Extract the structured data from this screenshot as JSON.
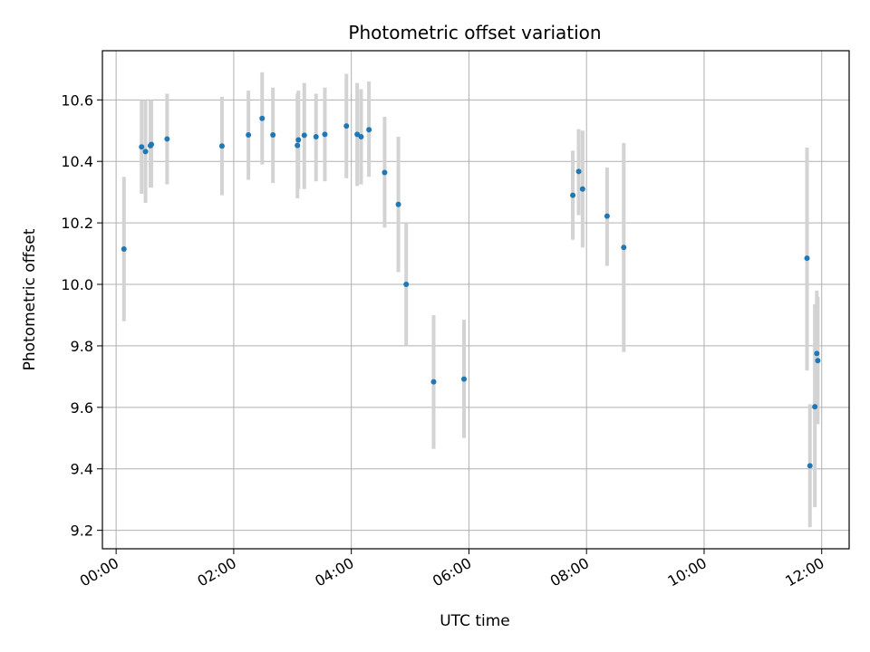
{
  "chart_data": {
    "type": "scatter",
    "title": "Photometric offset variation",
    "xlabel": "UTC time",
    "ylabel": "Photometric offset",
    "x_unit": "hours",
    "xlim": [
      "23:46",
      "12:28"
    ],
    "ylim": [
      9.14,
      10.76
    ],
    "x_ticks": [
      {
        "label": "00:00",
        "value": "00:00"
      },
      {
        "label": "02:00",
        "value": "02:00"
      },
      {
        "label": "04:00",
        "value": "04:00"
      },
      {
        "label": "06:00",
        "value": "06:00"
      },
      {
        "label": "08:00",
        "value": "08:00"
      },
      {
        "label": "10:00",
        "value": "10:00"
      },
      {
        "label": "12:00",
        "value": "12:00"
      }
    ],
    "y_ticks": [
      {
        "label": "9.2",
        "value": 9.2
      },
      {
        "label": "9.4",
        "value": 9.4
      },
      {
        "label": "9.6",
        "value": 9.6
      },
      {
        "label": "9.8",
        "value": 9.8
      },
      {
        "label": "10.0",
        "value": 10.0
      },
      {
        "label": "10.2",
        "value": 10.2
      },
      {
        "label": "10.4",
        "value": 10.4
      },
      {
        "label": "10.6",
        "value": 10.6
      }
    ],
    "grid": true,
    "legend": "none",
    "colors": {
      "point": "#1f77b4",
      "errorbar": "#d3d3d3",
      "grid": "#b0b0b0"
    },
    "points": [
      {
        "time": "00:08",
        "y": 10.115,
        "ylow": 9.88,
        "yhigh": 10.35
      },
      {
        "time": "00:26",
        "y": 10.447,
        "ylow": 10.295,
        "yhigh": 10.6
      },
      {
        "time": "00:30",
        "y": 10.432,
        "ylow": 10.265,
        "yhigh": 10.6
      },
      {
        "time": "00:35",
        "y": 10.451,
        "ylow": 10.315,
        "yhigh": 10.6
      },
      {
        "time": "00:36",
        "y": 10.455,
        "ylow": 10.315,
        "yhigh": 10.6
      },
      {
        "time": "00:52",
        "y": 10.473,
        "ylow": 10.325,
        "yhigh": 10.62
      },
      {
        "time": "01:48",
        "y": 10.45,
        "ylow": 10.29,
        "yhigh": 10.61
      },
      {
        "time": "02:15",
        "y": 10.486,
        "ylow": 10.34,
        "yhigh": 10.63
      },
      {
        "time": "02:29",
        "y": 10.54,
        "ylow": 10.39,
        "yhigh": 10.69
      },
      {
        "time": "02:40",
        "y": 10.486,
        "ylow": 10.33,
        "yhigh": 10.64
      },
      {
        "time": "03:05",
        "y": 10.452,
        "ylow": 10.28,
        "yhigh": 10.62
      },
      {
        "time": "03:06",
        "y": 10.47,
        "ylow": 10.31,
        "yhigh": 10.63
      },
      {
        "time": "03:12",
        "y": 10.485,
        "ylow": 10.31,
        "yhigh": 10.655
      },
      {
        "time": "03:24",
        "y": 10.48,
        "ylow": 10.335,
        "yhigh": 10.62
      },
      {
        "time": "03:33",
        "y": 10.488,
        "ylow": 10.335,
        "yhigh": 10.64
      },
      {
        "time": "03:55",
        "y": 10.515,
        "ylow": 10.345,
        "yhigh": 10.685
      },
      {
        "time": "04:06",
        "y": 10.488,
        "ylow": 10.32,
        "yhigh": 10.655
      },
      {
        "time": "04:10",
        "y": 10.48,
        "ylow": 10.325,
        "yhigh": 10.635
      },
      {
        "time": "04:18",
        "y": 10.503,
        "ylow": 10.35,
        "yhigh": 10.66
      },
      {
        "time": "04:34",
        "y": 10.364,
        "ylow": 10.185,
        "yhigh": 10.545
      },
      {
        "time": "04:48",
        "y": 10.26,
        "ylow": 10.04,
        "yhigh": 10.48
      },
      {
        "time": "04:56",
        "y": 10.0,
        "ylow": 9.8,
        "yhigh": 10.2
      },
      {
        "time": "05:24",
        "y": 9.683,
        "ylow": 9.465,
        "yhigh": 9.9
      },
      {
        "time": "05:55",
        "y": 9.692,
        "ylow": 9.5,
        "yhigh": 9.885
      },
      {
        "time": "07:46",
        "y": 10.29,
        "ylow": 10.145,
        "yhigh": 10.435
      },
      {
        "time": "07:52",
        "y": 10.367,
        "ylow": 10.225,
        "yhigh": 10.505
      },
      {
        "time": "07:56",
        "y": 10.31,
        "ylow": 10.12,
        "yhigh": 10.5
      },
      {
        "time": "08:21",
        "y": 10.222,
        "ylow": 10.06,
        "yhigh": 10.38
      },
      {
        "time": "08:38",
        "y": 10.12,
        "ylow": 9.78,
        "yhigh": 10.46
      },
      {
        "time": "11:45",
        "y": 10.085,
        "ylow": 9.72,
        "yhigh": 10.445
      },
      {
        "time": "11:48",
        "y": 9.41,
        "ylow": 9.21,
        "yhigh": 9.61
      },
      {
        "time": "11:53",
        "y": 9.602,
        "ylow": 9.275,
        "yhigh": 9.935
      },
      {
        "time": "11:55",
        "y": 9.775,
        "ylow": 9.57,
        "yhigh": 9.98
      },
      {
        "time": "11:56",
        "y": 9.752,
        "ylow": 9.545,
        "yhigh": 9.96
      }
    ]
  }
}
